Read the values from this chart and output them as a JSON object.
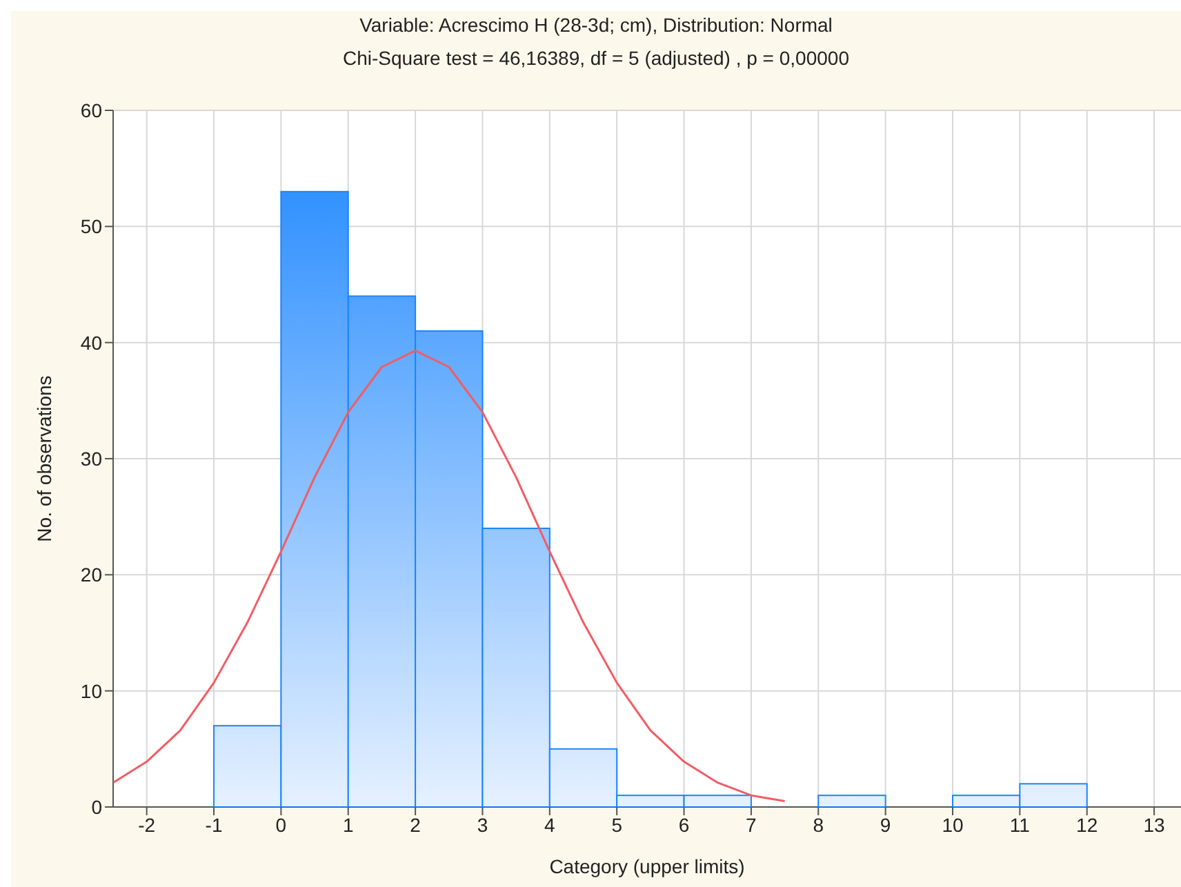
{
  "chart_data": {
    "type": "histogram",
    "title": "Variable: Acrescimo H (28-3d; cm), Distribution: Normal",
    "subtitle": "Chi-Square test = 46,16389, df = 5 (adjusted) , p = 0,00000",
    "xlabel": "Category (upper limits)",
    "ylabel": "No. of observations",
    "bins": [
      -1,
      0,
      1,
      2,
      3,
      4,
      5,
      6,
      7,
      8,
      9,
      10,
      11,
      12
    ],
    "values": [
      7,
      53,
      44,
      41,
      24,
      5,
      1,
      1,
      0,
      1,
      0,
      1,
      2
    ],
    "color": "#1a85ff",
    "series": [
      {
        "type": "line",
        "color": "#f25c64",
        "x": [
          -2.5,
          -2,
          -1.5,
          -1,
          -0.5,
          0,
          0.5,
          1,
          1.5,
          2,
          2.5,
          3,
          3.5,
          4,
          4.5,
          5,
          5.5,
          6,
          6.5,
          7,
          7.5
        ],
        "values": [
          2.1,
          3.9,
          6.6,
          10.7,
          15.9,
          22.0,
          28.4,
          34.0,
          37.9,
          39.3,
          37.9,
          34.0,
          28.4,
          22.0,
          15.9,
          10.7,
          6.6,
          3.9,
          2.1,
          1.0,
          0.5
        ]
      }
    ],
    "xlim": [
      -2.5,
      13.4
    ],
    "xticks": [
      -2,
      -1,
      0,
      1,
      2,
      3,
      4,
      5,
      6,
      7,
      8,
      9,
      10,
      11,
      12,
      13
    ],
    "ylim": [
      0,
      60
    ],
    "yticks": [
      0,
      10,
      20,
      30,
      40,
      50,
      60
    ],
    "grid": true
  }
}
